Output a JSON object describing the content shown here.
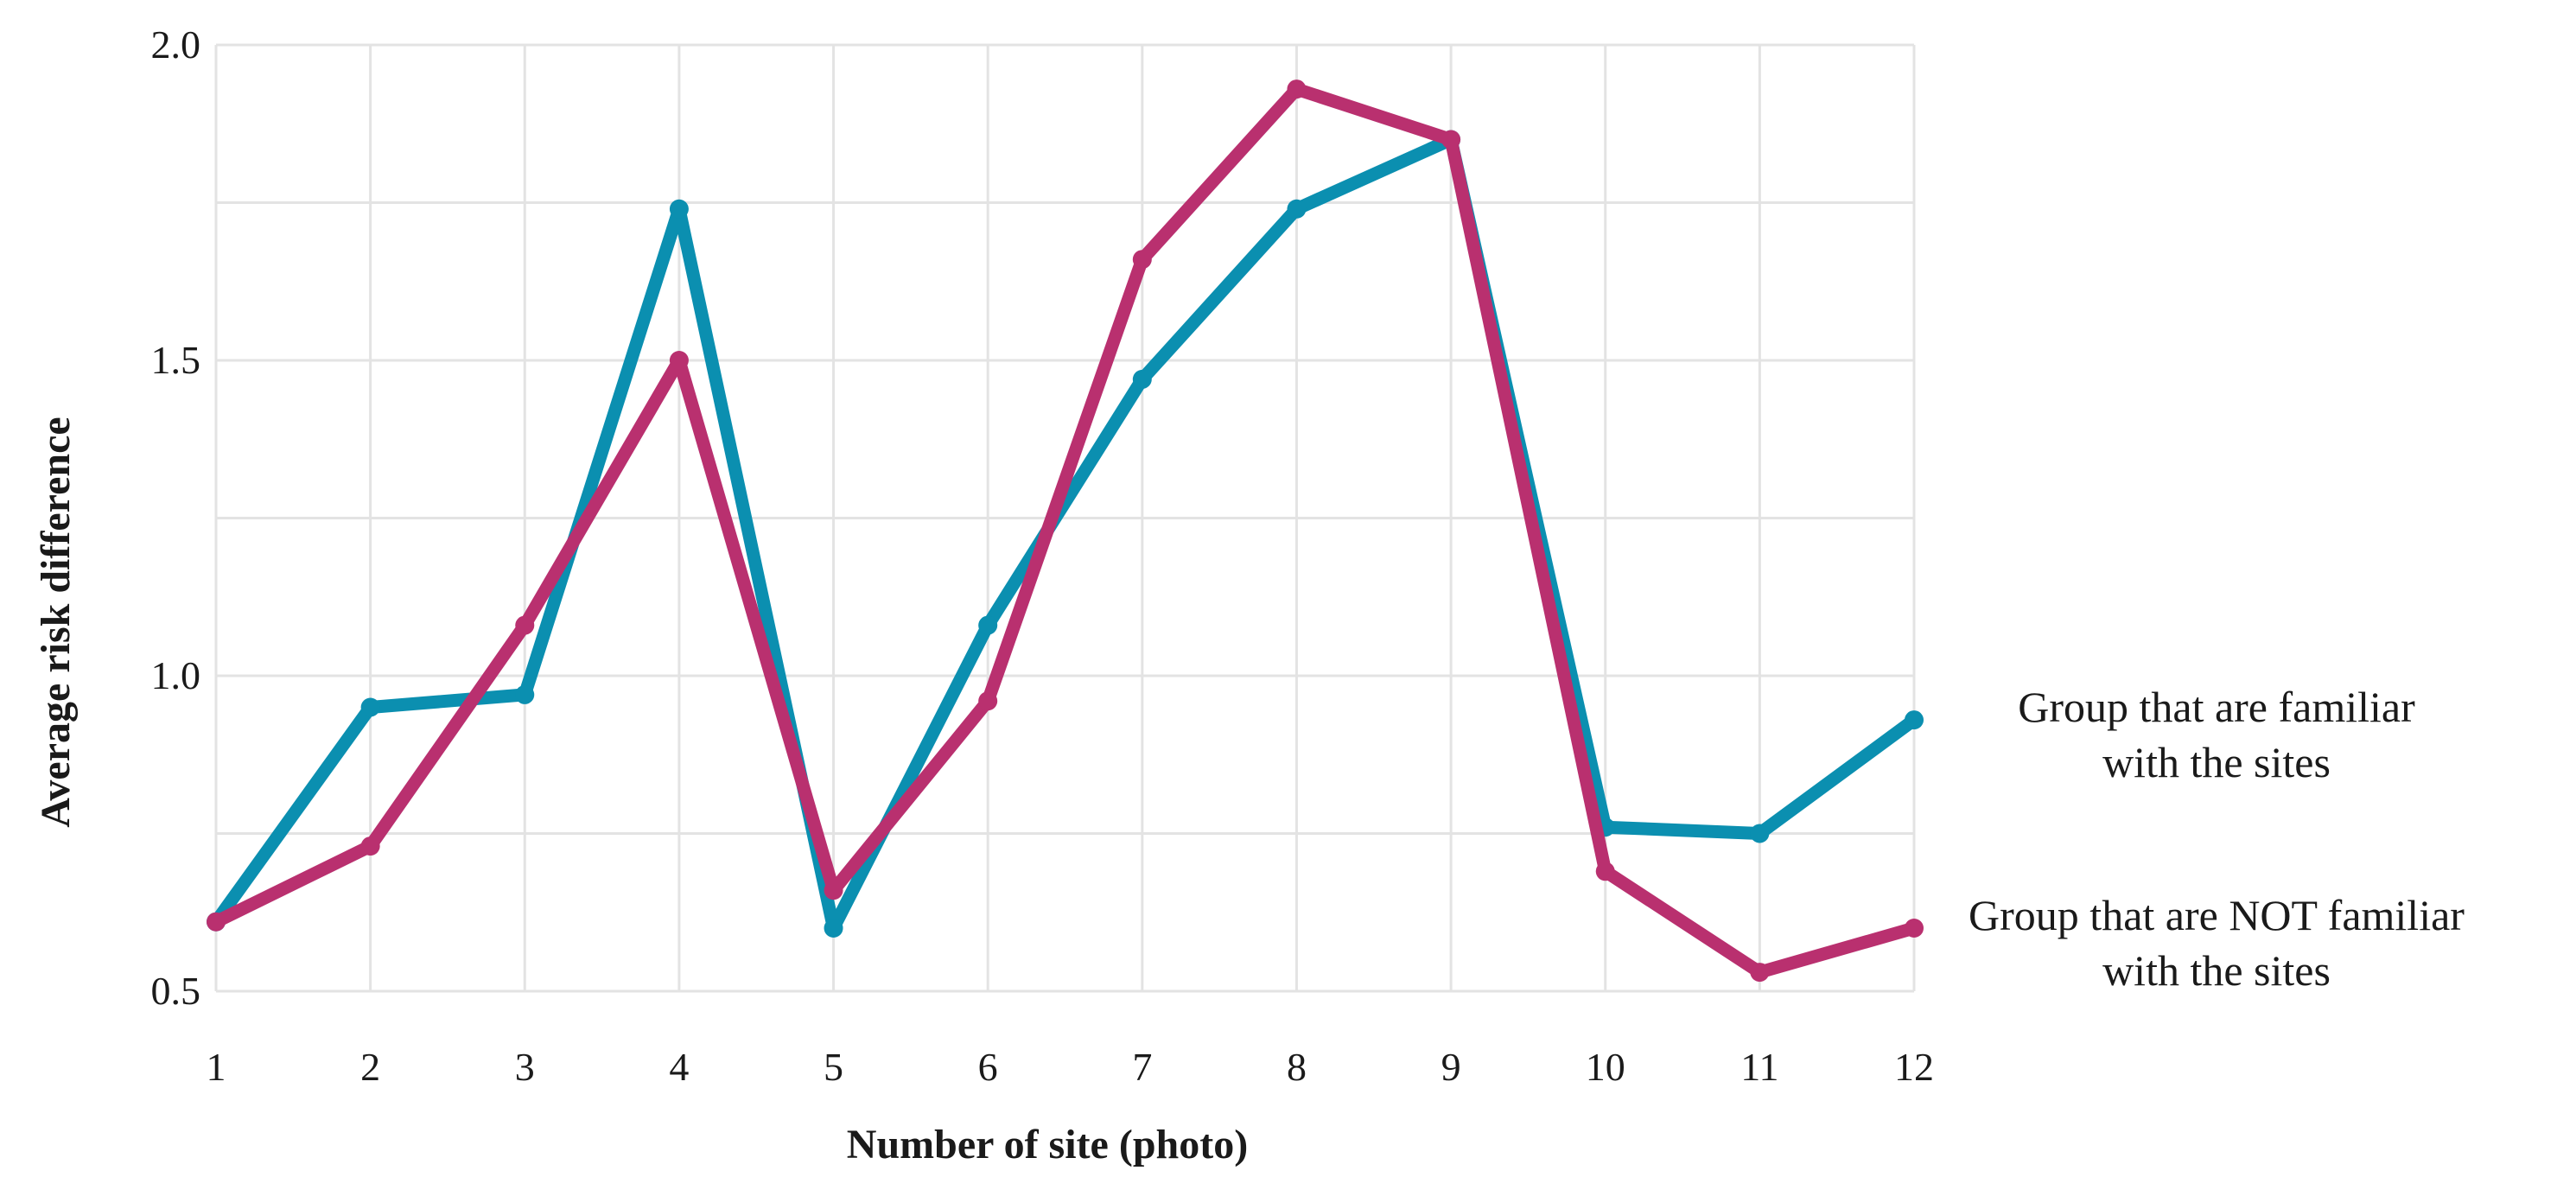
{
  "chart_data": {
    "type": "line",
    "title": "",
    "xlabel": "Number of site (photo)",
    "ylabel": "Average risk difference",
    "x": [
      1,
      2,
      3,
      4,
      5,
      6,
      7,
      8,
      9,
      10,
      11,
      12
    ],
    "xlim": [
      1,
      12
    ],
    "ylim": [
      0.5,
      2.0
    ],
    "yticks": [
      0.5,
      1.0,
      1.5,
      2.0
    ],
    "ytick_labels": [
      "0.5",
      "1.0",
      "1.5",
      "2.0"
    ],
    "xtick_labels": [
      "1",
      "2",
      "3",
      "4",
      "5",
      "6",
      "7",
      "8",
      "9",
      "10",
      "11",
      "12"
    ],
    "grid": true,
    "legend_placement": "right, at line ends",
    "series": [
      {
        "name": "Group that are familiar with the sites",
        "label_lines": [
          "Group that are familiar",
          "with the sites"
        ],
        "color": "#0b8fb0",
        "values": [
          0.61,
          0.95,
          0.97,
          1.74,
          0.6,
          1.08,
          1.47,
          1.74,
          1.85,
          0.76,
          0.75,
          0.93
        ]
      },
      {
        "name": "Group that are NOT familiar with the sites",
        "label_lines": [
          "Group that are NOT familiar",
          "with the sites"
        ],
        "color": "#b9306f",
        "values": [
          0.61,
          0.73,
          1.08,
          1.5,
          0.66,
          0.96,
          1.66,
          1.93,
          1.85,
          0.69,
          0.53,
          0.6
        ]
      }
    ]
  }
}
